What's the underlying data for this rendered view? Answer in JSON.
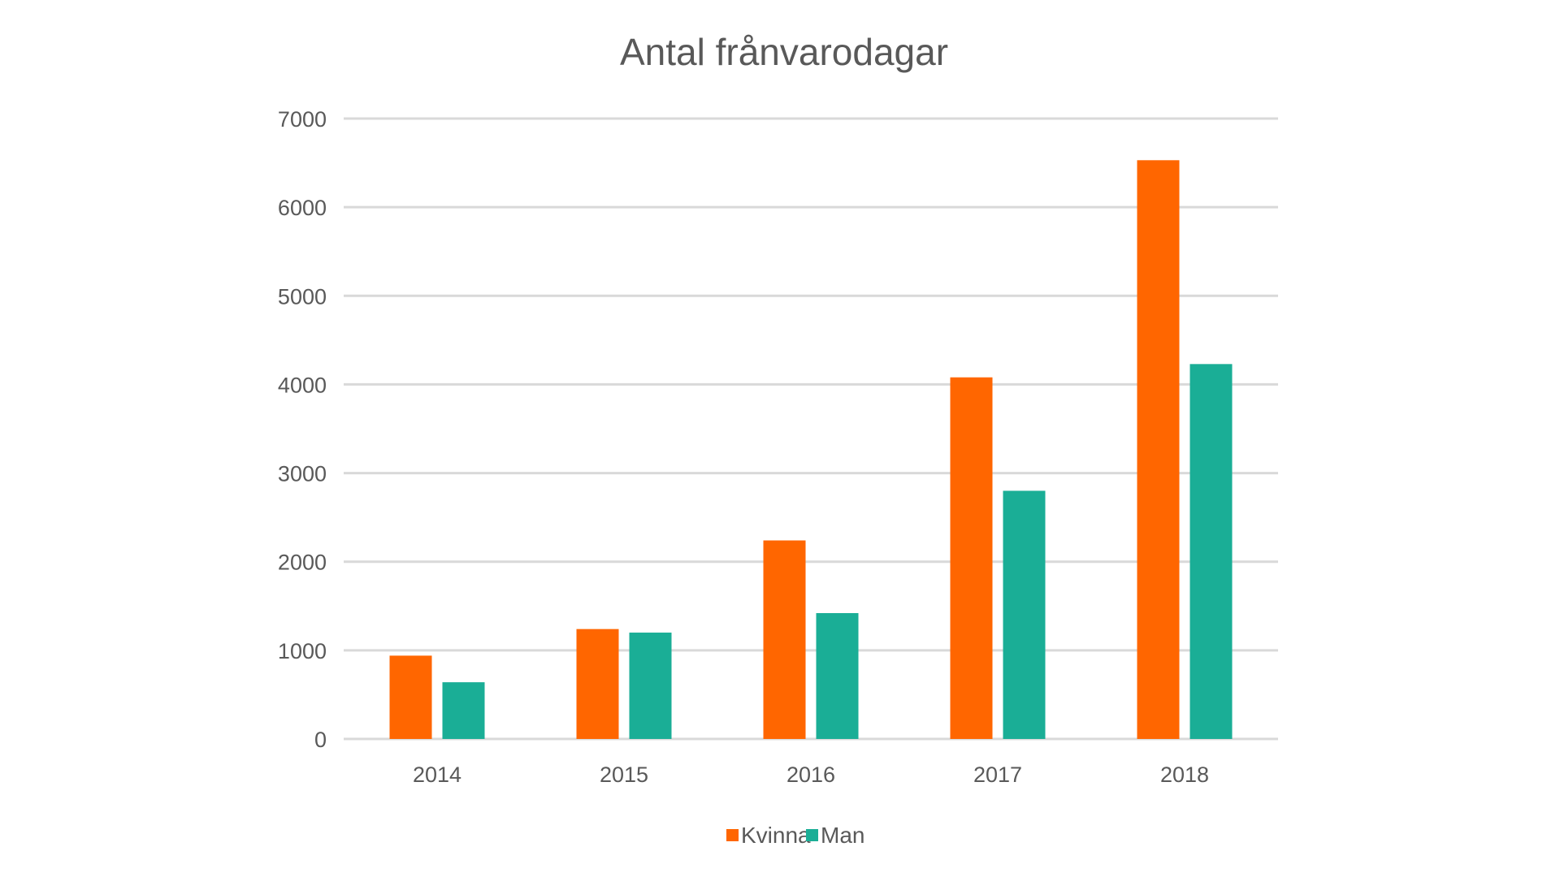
{
  "chart_data": {
    "type": "bar",
    "title": "Antal frånvarodagar",
    "xlabel": "",
    "ylabel": "",
    "categories": [
      "2014",
      "2015",
      "2016",
      "2017",
      "2018"
    ],
    "series": [
      {
        "name": "Kvinna",
        "color": "#ff6600",
        "values": [
          940,
          1240,
          2240,
          4080,
          6530
        ]
      },
      {
        "name": "Man",
        "color": "#1aae96",
        "values": [
          640,
          1200,
          1420,
          2800,
          4230
        ]
      }
    ],
    "ylim": [
      0,
      7000
    ],
    "yticks": [
      "0",
      "1000",
      "2000",
      "3000",
      "4000",
      "5000",
      "6000",
      "7000"
    ],
    "grid": true,
    "legend_position": "bottom"
  }
}
